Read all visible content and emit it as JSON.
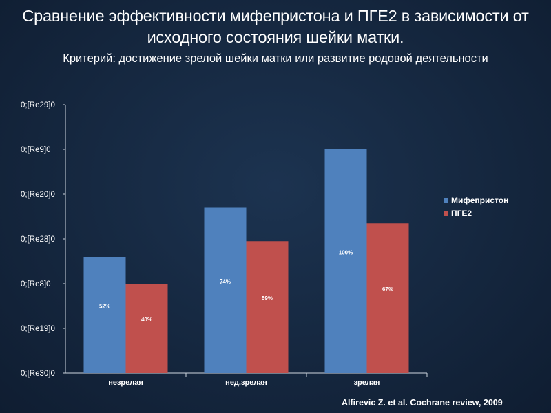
{
  "header": {
    "title": "Сравнение эффективности мифепристона и ПГЕ2 в зависимости от исходного состояния шейки матки.",
    "subtitle": "Критерий: достижение зрелой шейки матки или развитие родовой деятельности"
  },
  "source": "Alfirevic Z. et al. Cochrane  review, 2009",
  "colors": {
    "mifepristone": "#4f81bd",
    "pge2": "#c0504d",
    "axis": "#cfd6df"
  },
  "chart_data": {
    "type": "bar",
    "categories": [
      "незрелая",
      "нед.зрелая",
      "зрелая"
    ],
    "series": [
      {
        "name": "Мифепристон",
        "values": [
          52,
          74,
          100
        ],
        "labels": [
          "52%",
          "74%",
          "100%"
        ]
      },
      {
        "name": "ПГЕ2",
        "values": [
          40,
          59,
          67
        ],
        "labels": [
          "40%",
          "59%",
          "67%"
        ]
      }
    ],
    "ytick_labels": [
      "0;[Re30]0",
      "0;[Re19]0",
      "0;[Re8]0",
      "0;[Re28]0",
      "0;[Re20]0",
      "0;[Re9]0",
      "0;[Re29]0"
    ],
    "ylim": [
      0,
      120
    ],
    "grid": false,
    "legend_position": "right"
  }
}
